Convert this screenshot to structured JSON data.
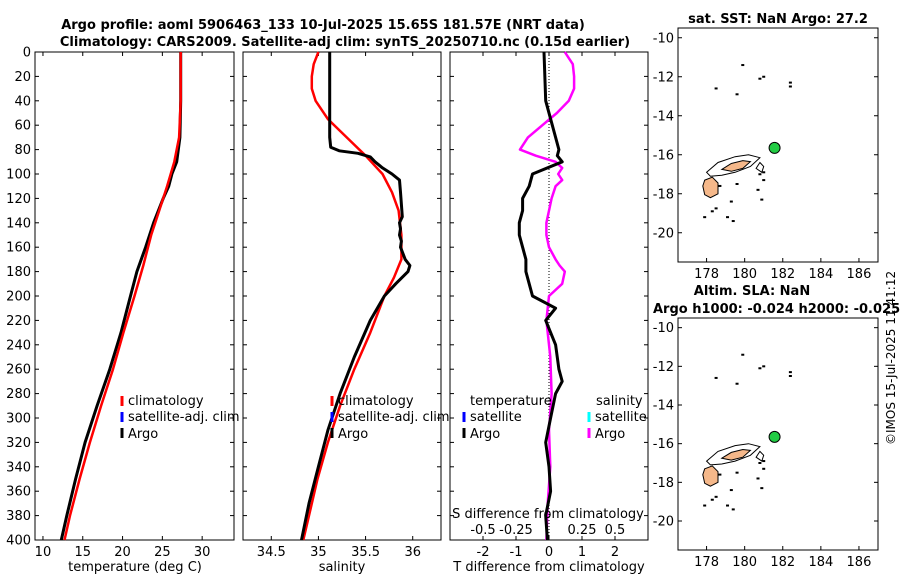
{
  "header": {
    "title_line1": "Argo profile: aoml 5906463_133 10-Jul-2025 15.65S 181.57E (NRT data)",
    "title_line2": "Climatology: CARS2009. Satellite-adj clim: synTS_20250710.nc (0.15d earlier)"
  },
  "side_label": "©IMOS 15-Jul-2025 11:41:12",
  "colors": {
    "climatology": "#ff0000",
    "satellite": "#0000ff",
    "argo": "#000000",
    "sal_satellite": "#00ffff",
    "sal_diff": "#ff00ff",
    "land": "#f5b88a",
    "argo_marker": "#22cc44"
  },
  "legend_main": {
    "climatology": "climatology",
    "satellite": "satellite-adj. clim",
    "argo": "Argo"
  },
  "legend_diff": {
    "temp_header": "temperature",
    "sal_header": "salinity",
    "temp_satellite": "satellite",
    "temp_argo": "Argo",
    "sal_satellite": "satellite",
    "sal_argo": "Argo"
  },
  "chart_data": [
    {
      "type": "line",
      "id": "temperature",
      "xlabel": "temperature (deg C)",
      "ylabel": "",
      "xlim": [
        9,
        34
      ],
      "ylim": [
        400,
        0
      ],
      "xticks": [
        10,
        15,
        20,
        25,
        30
      ],
      "yticks": [
        0,
        20,
        40,
        60,
        80,
        100,
        120,
        140,
        160,
        180,
        200,
        220,
        240,
        260,
        280,
        300,
        320,
        340,
        360,
        380,
        400
      ],
      "series": [
        {
          "name": "climatology",
          "depth": [
            0,
            40,
            70,
            90,
            110,
            130,
            150,
            175,
            200,
            230,
            260,
            290,
            320,
            350,
            380,
            400
          ],
          "values": [
            27.3,
            27.3,
            27.1,
            26.5,
            25.6,
            24.6,
            23.6,
            22.6,
            21.5,
            20.1,
            18.8,
            17.3,
            15.9,
            14.6,
            13.4,
            12.7
          ]
        },
        {
          "name": "Argo",
          "depth": [
            0,
            40,
            70,
            90,
            100,
            110,
            120,
            140,
            160,
            180,
            200,
            230,
            260,
            290,
            320,
            350,
            380,
            400
          ],
          "values": [
            27.3,
            27.3,
            27.2,
            26.8,
            26.2,
            25.8,
            25.1,
            23.9,
            22.9,
            21.8,
            21.0,
            19.8,
            18.4,
            16.8,
            15.3,
            14.1,
            13.0,
            12.3
          ]
        }
      ]
    },
    {
      "type": "line",
      "id": "salinity",
      "xlabel": "salinity",
      "ylabel": "",
      "xlim": [
        34.2,
        36.3
      ],
      "ylim": [
        400,
        0
      ],
      "xticks": [
        34.5,
        35,
        35.5,
        36
      ],
      "series": [
        {
          "name": "climatology",
          "depth": [
            0,
            10,
            20,
            30,
            40,
            55,
            70,
            85,
            100,
            115,
            130,
            150,
            170,
            185,
            200,
            230,
            260,
            290,
            320,
            350,
            380,
            400
          ],
          "values": [
            35.0,
            34.95,
            34.93,
            34.93,
            34.97,
            35.1,
            35.3,
            35.5,
            35.68,
            35.78,
            35.85,
            35.88,
            35.88,
            35.8,
            35.7,
            35.55,
            35.38,
            35.23,
            35.1,
            34.99,
            34.9,
            34.84
          ]
        },
        {
          "name": "Argo",
          "depth": [
            0,
            10,
            30,
            50,
            70,
            78,
            81,
            83,
            86,
            90,
            95,
            100,
            105,
            115,
            125,
            135,
            140,
            145,
            150,
            155,
            160,
            170,
            175,
            180,
            190,
            195,
            200,
            220,
            250,
            280,
            310,
            340,
            370,
            400
          ],
          "values": [
            35.12,
            35.12,
            35.12,
            35.12,
            35.12,
            35.13,
            35.22,
            35.42,
            35.55,
            35.6,
            35.68,
            35.78,
            35.86,
            35.87,
            35.88,
            35.89,
            35.86,
            35.87,
            35.86,
            35.88,
            35.87,
            35.92,
            35.97,
            35.95,
            35.82,
            35.76,
            35.7,
            35.55,
            35.38,
            35.23,
            35.1,
            35.0,
            34.9,
            34.82
          ]
        }
      ]
    },
    {
      "type": "line",
      "id": "difference",
      "xlabel": "T difference from climatology",
      "top_label": "S difference from climatology",
      "xlim": [
        -3,
        3
      ],
      "ylim": [
        400,
        0
      ],
      "xticks": [
        -2,
        -1,
        0,
        1,
        2
      ],
      "xtick_labels": [
        "-2",
        "-1",
        "0",
        "1",
        "2"
      ],
      "s_ticks": [
        -0.5,
        -0.25,
        0.25,
        0.5
      ],
      "s_tick_labels": [
        "-0.5",
        "-0.25",
        "0.25",
        "0.5"
      ],
      "s_scale": 4,
      "series": [
        {
          "name": "T Argo",
          "depth": [
            0,
            40,
            60,
            70,
            80,
            85,
            90,
            100,
            110,
            120,
            130,
            140,
            150,
            160,
            170,
            180,
            190,
            200,
            210,
            220,
            240,
            260,
            270,
            280,
            300,
            320,
            340,
            360,
            380,
            400
          ],
          "values": [
            -0.15,
            -0.1,
            0.1,
            0.2,
            0.3,
            0.25,
            0.4,
            -0.5,
            -0.6,
            -0.8,
            -0.8,
            -0.9,
            -0.9,
            -0.8,
            -0.7,
            -0.7,
            -0.6,
            -0.5,
            0.2,
            -0.1,
            0.2,
            0.3,
            0.4,
            0.2,
            0.05,
            -0.1,
            0.0,
            0.05,
            -0.1,
            -0.05
          ]
        },
        {
          "name": "S Argo",
          "depth": [
            0,
            10,
            20,
            30,
            40,
            50,
            60,
            70,
            80,
            85,
            90,
            95,
            100,
            105,
            110,
            120,
            130,
            140,
            150,
            160,
            170,
            175,
            180,
            190,
            200,
            210,
            220,
            250,
            280,
            310,
            340,
            370,
            400
          ],
          "values": [
            0.12,
            0.18,
            0.19,
            0.19,
            0.15,
            0.06,
            -0.05,
            -0.16,
            -0.22,
            -0.1,
            0.05,
            0.1,
            0.07,
            0.1,
            0.05,
            0.02,
            0.0,
            -0.02,
            -0.02,
            0.0,
            0.05,
            0.08,
            0.12,
            0.1,
            0.0,
            -0.01,
            -0.02,
            0.01,
            0.02,
            0.0,
            0.01,
            -0.01,
            -0.02
          ]
        }
      ]
    },
    {
      "type": "map",
      "id": "sst_map",
      "title": "sat. SST: NaN Argo: 27.2",
      "xlim": [
        176.5,
        187
      ],
      "ylim": [
        -21.5,
        -9.5
      ],
      "xticks": [
        178,
        180,
        182,
        184,
        186
      ],
      "yticks": [
        -10,
        -12,
        -14,
        -16,
        -18,
        -20
      ],
      "argo_position": {
        "lon": 181.57,
        "lat": -15.65
      }
    },
    {
      "type": "map",
      "id": "sla_map",
      "title": "Altim. SLA: NaN",
      "subtitle": "Argo h1000: -0.024 h2000: -0.025",
      "xlim": [
        176.5,
        187
      ],
      "ylim": [
        -21.5,
        -9.5
      ],
      "xticks": [
        178,
        180,
        182,
        184,
        186
      ],
      "yticks": [
        -10,
        -12,
        -14,
        -16,
        -18,
        -20
      ],
      "argo_position": {
        "lon": 181.57,
        "lat": -15.65
      }
    }
  ]
}
